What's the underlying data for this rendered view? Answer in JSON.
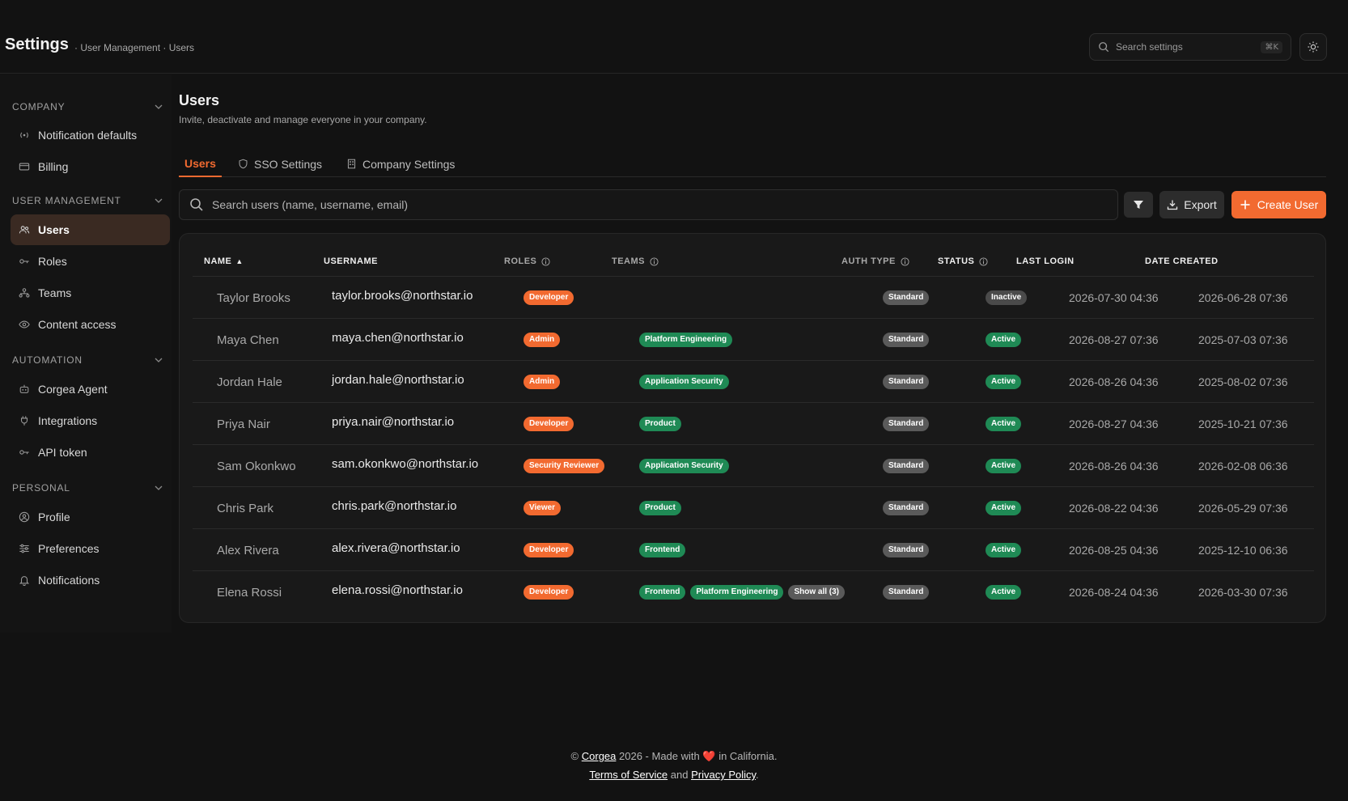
{
  "header": {
    "title": "Settings",
    "breadcrumb": "· User Management · Users",
    "search_placeholder": "Search settings",
    "search_shortcut": "⌘K"
  },
  "sidebar": {
    "sections": [
      {
        "label": "COMPANY",
        "items": [
          "Notification defaults",
          "Billing"
        ]
      },
      {
        "label": "USER MANAGEMENT",
        "items": [
          "Users",
          "Roles",
          "Teams",
          "Content access"
        ]
      },
      {
        "label": "AUTOMATION",
        "items": [
          "Corgea Agent",
          "Integrations",
          "API token"
        ]
      },
      {
        "label": "PERSONAL",
        "items": [
          "Profile",
          "Preferences",
          "Notifications"
        ]
      }
    ],
    "active_item": "Users"
  },
  "main": {
    "title": "Users",
    "subtitle": "Invite, deactivate and manage everyone in your company.",
    "tabs": [
      {
        "label": "Users",
        "icon": "none",
        "active": true
      },
      {
        "label": "SSO Settings",
        "icon": "shield-icon",
        "active": false
      },
      {
        "label": "Company Settings",
        "icon": "building-icon",
        "active": false
      }
    ],
    "search_placeholder": "Search users (name, username, email)",
    "export_label": "Export",
    "create_label": "Create User"
  },
  "table": {
    "columns": [
      "NAME",
      "USERNAME",
      "ROLES",
      "TEAMS",
      "AUTH TYPE",
      "STATUS",
      "LAST LOGIN",
      "DATE CREATED"
    ],
    "rows": [
      {
        "name": "Taylor Brooks",
        "username": "taylor.brooks@northstar.io",
        "role": "Developer",
        "teams": [],
        "auth": "Standard",
        "status": "Inactive",
        "last_login": "2026-07-30 04:36",
        "created": "2026-06-28 07:36"
      },
      {
        "name": "Maya Chen",
        "username": "maya.chen@northstar.io",
        "role": "Admin",
        "teams": [
          "Platform Engineering"
        ],
        "auth": "Standard",
        "status": "Active",
        "last_login": "2026-08-27 07:36",
        "created": "2025-07-03 07:36"
      },
      {
        "name": "Jordan Hale",
        "username": "jordan.hale@northstar.io",
        "role": "Admin",
        "teams": [
          "Application Security"
        ],
        "auth": "Standard",
        "status": "Active",
        "last_login": "2026-08-26 04:36",
        "created": "2025-08-02 07:36"
      },
      {
        "name": "Priya Nair",
        "username": "priya.nair@northstar.io",
        "role": "Developer",
        "teams": [
          "Product"
        ],
        "auth": "Standard",
        "status": "Active",
        "last_login": "2026-08-27 04:36",
        "created": "2025-10-21 07:36"
      },
      {
        "name": "Sam Okonkwo",
        "username": "sam.okonkwo@northstar.io",
        "role": "Security Reviewer",
        "teams": [
          "Application Security"
        ],
        "auth": "Standard",
        "status": "Active",
        "last_login": "2026-08-26 04:36",
        "created": "2026-02-08 06:36"
      },
      {
        "name": "Chris Park",
        "username": "chris.park@northstar.io",
        "role": "Viewer",
        "teams": [
          "Product"
        ],
        "auth": "Standard",
        "status": "Active",
        "last_login": "2026-08-22 04:36",
        "created": "2026-05-29 07:36"
      },
      {
        "name": "Alex Rivera",
        "username": "alex.rivera@northstar.io",
        "role": "Developer",
        "teams": [
          "Frontend"
        ],
        "auth": "Standard",
        "status": "Active",
        "last_login": "2026-08-25 04:36",
        "created": "2025-12-10 06:36"
      },
      {
        "name": "Elena Rossi",
        "username": "elena.rossi@northstar.io",
        "role": "Developer",
        "teams": [
          "Frontend",
          "Platform Engineering"
        ],
        "teams_more": "Show all (3)",
        "auth": "Standard",
        "status": "Active",
        "last_login": "2026-08-24 04:36",
        "created": "2026-03-30 07:36"
      }
    ]
  },
  "footer": {
    "copyright": "©",
    "brand": "Corgea",
    "made_with": "2026 - Made with",
    "heart": "❤️",
    "location": "in California.",
    "tos": "Terms of Service",
    "and": "and",
    "privacy": "Privacy Policy",
    "period": "."
  },
  "colors": {
    "accent": "#f26a30",
    "success": "#1f8a55",
    "background": "#121212"
  }
}
